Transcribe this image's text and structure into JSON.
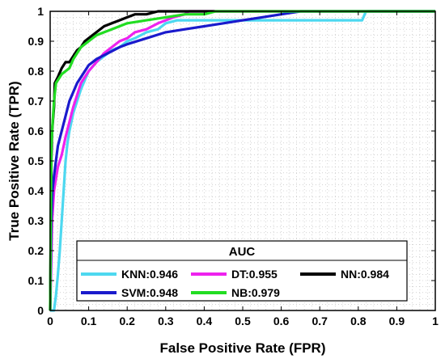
{
  "chart_data": {
    "type": "line",
    "title": "",
    "xlabel": "False Positive Rate (FPR)",
    "ylabel": "True Positive Rate (TPR)",
    "xlim": [
      0,
      1
    ],
    "ylim": [
      0,
      1
    ],
    "xticks": [
      "0",
      "0.1",
      "0.2",
      "0.3",
      "0.4",
      "0.5",
      "0.6",
      "0.7",
      "0.8",
      "0.9",
      "1"
    ],
    "yticks": [
      "0",
      "0.1",
      "0.2",
      "0.3",
      "0.4",
      "0.5",
      "0.6",
      "0.7",
      "0.8",
      "0.9",
      "1"
    ],
    "grid": "minor-dotted",
    "legend": {
      "title": "AUC",
      "placement": "bottom-center"
    },
    "series": [
      {
        "name": "KNN:0.946",
        "color": "#4dd8f0",
        "points": [
          [
            0,
            0
          ],
          [
            0.01,
            0
          ],
          [
            0.015,
            0.05
          ],
          [
            0.02,
            0.12
          ],
          [
            0.025,
            0.2
          ],
          [
            0.03,
            0.3
          ],
          [
            0.035,
            0.4
          ],
          [
            0.04,
            0.5
          ],
          [
            0.045,
            0.56
          ],
          [
            0.05,
            0.6
          ],
          [
            0.06,
            0.66
          ],
          [
            0.07,
            0.7
          ],
          [
            0.08,
            0.74
          ],
          [
            0.09,
            0.77
          ],
          [
            0.1,
            0.8
          ],
          [
            0.12,
            0.83
          ],
          [
            0.14,
            0.85
          ],
          [
            0.16,
            0.87
          ],
          [
            0.18,
            0.88
          ],
          [
            0.2,
            0.9
          ],
          [
            0.22,
            0.91
          ],
          [
            0.25,
            0.93
          ],
          [
            0.28,
            0.94
          ],
          [
            0.3,
            0.96
          ],
          [
            0.33,
            0.97
          ],
          [
            0.35,
            0.97
          ],
          [
            0.4,
            0.97
          ],
          [
            0.5,
            0.97
          ],
          [
            0.6,
            0.97
          ],
          [
            0.7,
            0.97
          ],
          [
            0.8,
            0.97
          ],
          [
            0.81,
            0.97
          ],
          [
            0.82,
            1
          ],
          [
            1,
            1
          ]
        ]
      },
      {
        "name": "DT:0.955",
        "color": "#ee22ee",
        "points": [
          [
            0,
            0
          ],
          [
            0.005,
            0.3
          ],
          [
            0.01,
            0.4
          ],
          [
            0.02,
            0.48
          ],
          [
            0.03,
            0.52
          ],
          [
            0.04,
            0.58
          ],
          [
            0.05,
            0.63
          ],
          [
            0.06,
            0.68
          ],
          [
            0.07,
            0.72
          ],
          [
            0.08,
            0.76
          ],
          [
            0.1,
            0.8
          ],
          [
            0.12,
            0.83
          ],
          [
            0.14,
            0.86
          ],
          [
            0.16,
            0.88
          ],
          [
            0.18,
            0.9
          ],
          [
            0.2,
            0.91
          ],
          [
            0.22,
            0.93
          ],
          [
            0.25,
            0.94
          ],
          [
            0.28,
            0.96
          ],
          [
            0.3,
            0.97
          ],
          [
            0.32,
            0.98
          ],
          [
            0.35,
            0.99
          ],
          [
            0.36,
            1
          ],
          [
            1,
            1
          ]
        ]
      },
      {
        "name": "NN:0.984",
        "color": "#000000",
        "points": [
          [
            0,
            0
          ],
          [
            0.003,
            0.5
          ],
          [
            0.005,
            0.6
          ],
          [
            0.01,
            0.68
          ],
          [
            0.012,
            0.76
          ],
          [
            0.02,
            0.78
          ],
          [
            0.03,
            0.81
          ],
          [
            0.04,
            0.83
          ],
          [
            0.05,
            0.83
          ],
          [
            0.06,
            0.85
          ],
          [
            0.07,
            0.87
          ],
          [
            0.08,
            0.88
          ],
          [
            0.09,
            0.9
          ],
          [
            0.1,
            0.91
          ],
          [
            0.12,
            0.93
          ],
          [
            0.14,
            0.95
          ],
          [
            0.16,
            0.96
          ],
          [
            0.18,
            0.97
          ],
          [
            0.2,
            0.98
          ],
          [
            0.22,
            0.99
          ],
          [
            0.25,
            0.99
          ],
          [
            0.28,
            1
          ],
          [
            1,
            1
          ]
        ]
      },
      {
        "name": "SVM:0.948",
        "color": "#1a1acc",
        "points": [
          [
            0,
            0
          ],
          [
            0.003,
            0.3
          ],
          [
            0.006,
            0.4
          ],
          [
            0.01,
            0.45
          ],
          [
            0.015,
            0.5
          ],
          [
            0.02,
            0.55
          ],
          [
            0.03,
            0.6
          ],
          [
            0.04,
            0.65
          ],
          [
            0.05,
            0.7
          ],
          [
            0.06,
            0.73
          ],
          [
            0.07,
            0.76
          ],
          [
            0.08,
            0.78
          ],
          [
            0.09,
            0.8
          ],
          [
            0.1,
            0.82
          ],
          [
            0.12,
            0.84
          ],
          [
            0.15,
            0.86
          ],
          [
            0.18,
            0.88
          ],
          [
            0.2,
            0.89
          ],
          [
            0.25,
            0.91
          ],
          [
            0.3,
            0.93
          ],
          [
            0.35,
            0.94
          ],
          [
            0.4,
            0.95
          ],
          [
            0.45,
            0.96
          ],
          [
            0.5,
            0.97
          ],
          [
            0.55,
            0.98
          ],
          [
            0.6,
            0.99
          ],
          [
            0.65,
            1
          ],
          [
            0.7,
            1
          ],
          [
            1,
            1
          ]
        ]
      },
      {
        "name": "NB:0.979",
        "color": "#22dd22",
        "points": [
          [
            0,
            0
          ],
          [
            0.003,
            0.55
          ],
          [
            0.006,
            0.62
          ],
          [
            0.01,
            0.7
          ],
          [
            0.015,
            0.76
          ],
          [
            0.02,
            0.77
          ],
          [
            0.03,
            0.79
          ],
          [
            0.04,
            0.8
          ],
          [
            0.05,
            0.81
          ],
          [
            0.06,
            0.84
          ],
          [
            0.07,
            0.86
          ],
          [
            0.08,
            0.88
          ],
          [
            0.1,
            0.9
          ],
          [
            0.12,
            0.92
          ],
          [
            0.14,
            0.93
          ],
          [
            0.16,
            0.94
          ],
          [
            0.18,
            0.95
          ],
          [
            0.2,
            0.96
          ],
          [
            0.25,
            0.97
          ],
          [
            0.3,
            0.98
          ],
          [
            0.35,
            0.99
          ],
          [
            0.4,
            0.99
          ],
          [
            0.43,
            1
          ],
          [
            1,
            1
          ]
        ]
      }
    ]
  }
}
